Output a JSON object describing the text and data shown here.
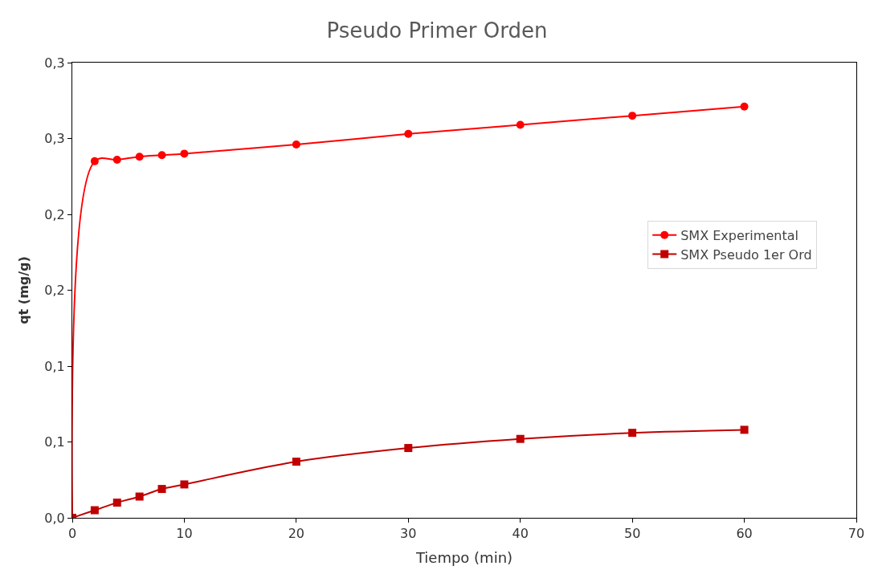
{
  "chart_data": {
    "type": "line",
    "title": "Pseudo Primer Orden",
    "xlabel": "Tiempo (min)",
    "ylabel": "qt (mg/g)",
    "xlim": [
      0,
      70
    ],
    "xticks": [
      0,
      10,
      20,
      30,
      40,
      50,
      60,
      70
    ],
    "ylim": [
      0,
      0.3
    ],
    "yticks": [
      {
        "value": 0,
        "label": "0,0"
      },
      {
        "value": 0.05,
        "label": "0,1"
      },
      {
        "value": 0.1,
        "label": "0,1"
      },
      {
        "value": 0.15,
        "label": "0,2"
      },
      {
        "value": 0.2,
        "label": "0,2"
      },
      {
        "value": 0.25,
        "label": "0,3"
      },
      {
        "value": 0.3,
        "label": "0,3"
      }
    ],
    "grid": false,
    "legend": "right",
    "line_style": "solid",
    "series": [
      {
        "name": "SMX Experimental",
        "color": "#ff0000",
        "marker": "circle",
        "x": [
          0,
          2,
          4,
          6,
          8,
          10,
          20,
          30,
          40,
          50,
          60
        ],
        "values": [
          0,
          0.235,
          0.236,
          0.238,
          0.239,
          0.24,
          0.246,
          0.253,
          0.259,
          0.265,
          0.271
        ]
      },
      {
        "name": "SMX Pseudo 1er Ord",
        "color": "#c00000",
        "marker": "square",
        "x": [
          0,
          2,
          4,
          6,
          8,
          10,
          20,
          30,
          40,
          50,
          60
        ],
        "values": [
          0,
          0.005,
          0.01,
          0.014,
          0.019,
          0.022,
          0.037,
          0.046,
          0.052,
          0.056,
          0.058
        ]
      }
    ]
  }
}
